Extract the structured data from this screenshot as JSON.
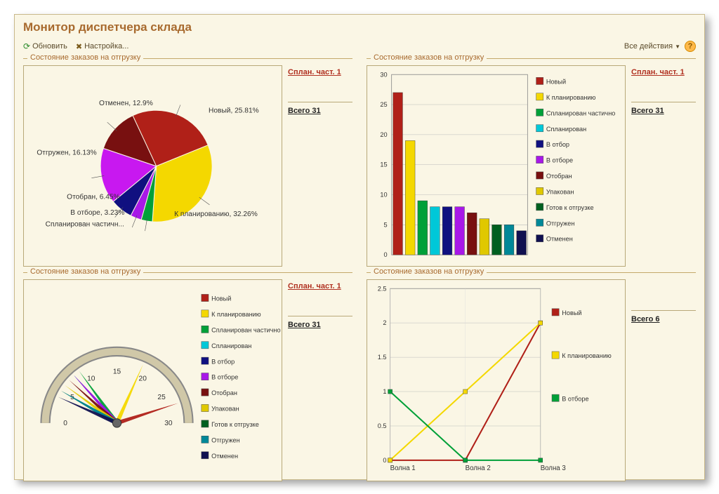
{
  "title": "Монитор диспетчера склада",
  "toolbar": {
    "refresh": "Обновить",
    "settings": "Настройка...",
    "all_actions": "Все действия"
  },
  "colors": {
    "window_bg": "#faf6e5",
    "border": "#c4a86a",
    "title": "#a86a2e"
  },
  "statuses": [
    {
      "key": "novyy",
      "label": "Новый",
      "color": "#b02018"
    },
    {
      "key": "k_plan",
      "label": "К планированию",
      "color": "#f4d800"
    },
    {
      "key": "splan_chast",
      "label": "Спланирован частично",
      "color": "#00a038"
    },
    {
      "key": "splan",
      "label": "Спланирован",
      "color": "#00c8d8"
    },
    {
      "key": "v_otbor",
      "label": "В отбор",
      "color": "#101080"
    },
    {
      "key": "v_otbore",
      "label": "В отборе",
      "color": "#a818e8"
    },
    {
      "key": "otobran",
      "label": "Отобран",
      "color": "#781010"
    },
    {
      "key": "upakovan",
      "label": "Упакован",
      "color": "#e0c800"
    },
    {
      "key": "gotov",
      "label": "Готов к отгрузке",
      "color": "#006020"
    },
    {
      "key": "otgruzhen",
      "label": "Отгружен",
      "color": "#008898"
    },
    {
      "key": "otmenen",
      "label": "Отменен",
      "color": "#101050"
    }
  ],
  "panel_title": "Состояние заказов на отгрузку",
  "side": {
    "link": "Сплан. част. 1",
    "total31": "Всего 31",
    "total6": "Всего 6"
  },
  "pie": {
    "slices": [
      {
        "label": "Новый, 25.81%",
        "pct": 25.81,
        "color": "#b02018"
      },
      {
        "label": "К планированию, 32.26%",
        "pct": 32.26,
        "color": "#f4d800"
      },
      {
        "label": "Спланирован частичн...",
        "pct": 3.23,
        "color": "#00a038"
      },
      {
        "label": "В отборе, 3.23%",
        "pct": 3.23,
        "color": "#a818e8"
      },
      {
        "label": "Отобран, 6.45%",
        "pct": 6.45,
        "color": "#101080"
      },
      {
        "label": "Отгружен, 16.13%",
        "pct": 16.13,
        "color": "#c818f0"
      },
      {
        "label": "Отменен, 12.9%",
        "pct": 12.9,
        "color": "#781010"
      }
    ]
  },
  "bar": {
    "values": [
      27,
      19,
      9,
      8,
      8,
      8,
      7,
      6,
      5,
      5,
      4
    ],
    "ylim": [
      0,
      30
    ],
    "ytick": 5
  },
  "gauge": {
    "min": 0,
    "max": 30,
    "ticks": [
      0,
      5,
      10,
      15,
      20,
      25,
      30
    ]
  },
  "line": {
    "xlabels": [
      "Волна 1",
      "Волна 2",
      "Волна 3"
    ],
    "ylim": [
      0,
      2.5
    ],
    "ytick": 0.5,
    "series": [
      {
        "label": "Новый",
        "color": "#b02018",
        "values": [
          0,
          0,
          2
        ]
      },
      {
        "label": "К планированию",
        "color": "#f4d800",
        "values": [
          0,
          1,
          2
        ]
      },
      {
        "label": "В отборе",
        "color": "#00a038",
        "values": [
          1,
          0,
          0
        ]
      }
    ]
  }
}
